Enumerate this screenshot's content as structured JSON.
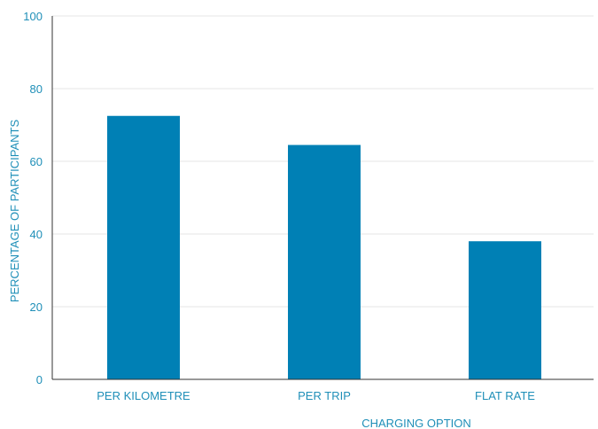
{
  "chart_data": {
    "type": "bar",
    "categories": [
      "PER KILOMETRE",
      "PER TRIP",
      "FLAT RATE"
    ],
    "values": [
      72.5,
      64.5,
      38
    ],
    "xlabel": "CHARGING OPTION",
    "ylabel": "PERCENTAGE OF PARTICIPANTS",
    "ylim": [
      0,
      100
    ],
    "yticks": [
      0,
      20,
      40,
      60,
      80,
      100
    ],
    "grid": true,
    "bar_color": "#0080b5",
    "text_color": "#1f8fb8",
    "grid_color": "#e6e6e6"
  }
}
